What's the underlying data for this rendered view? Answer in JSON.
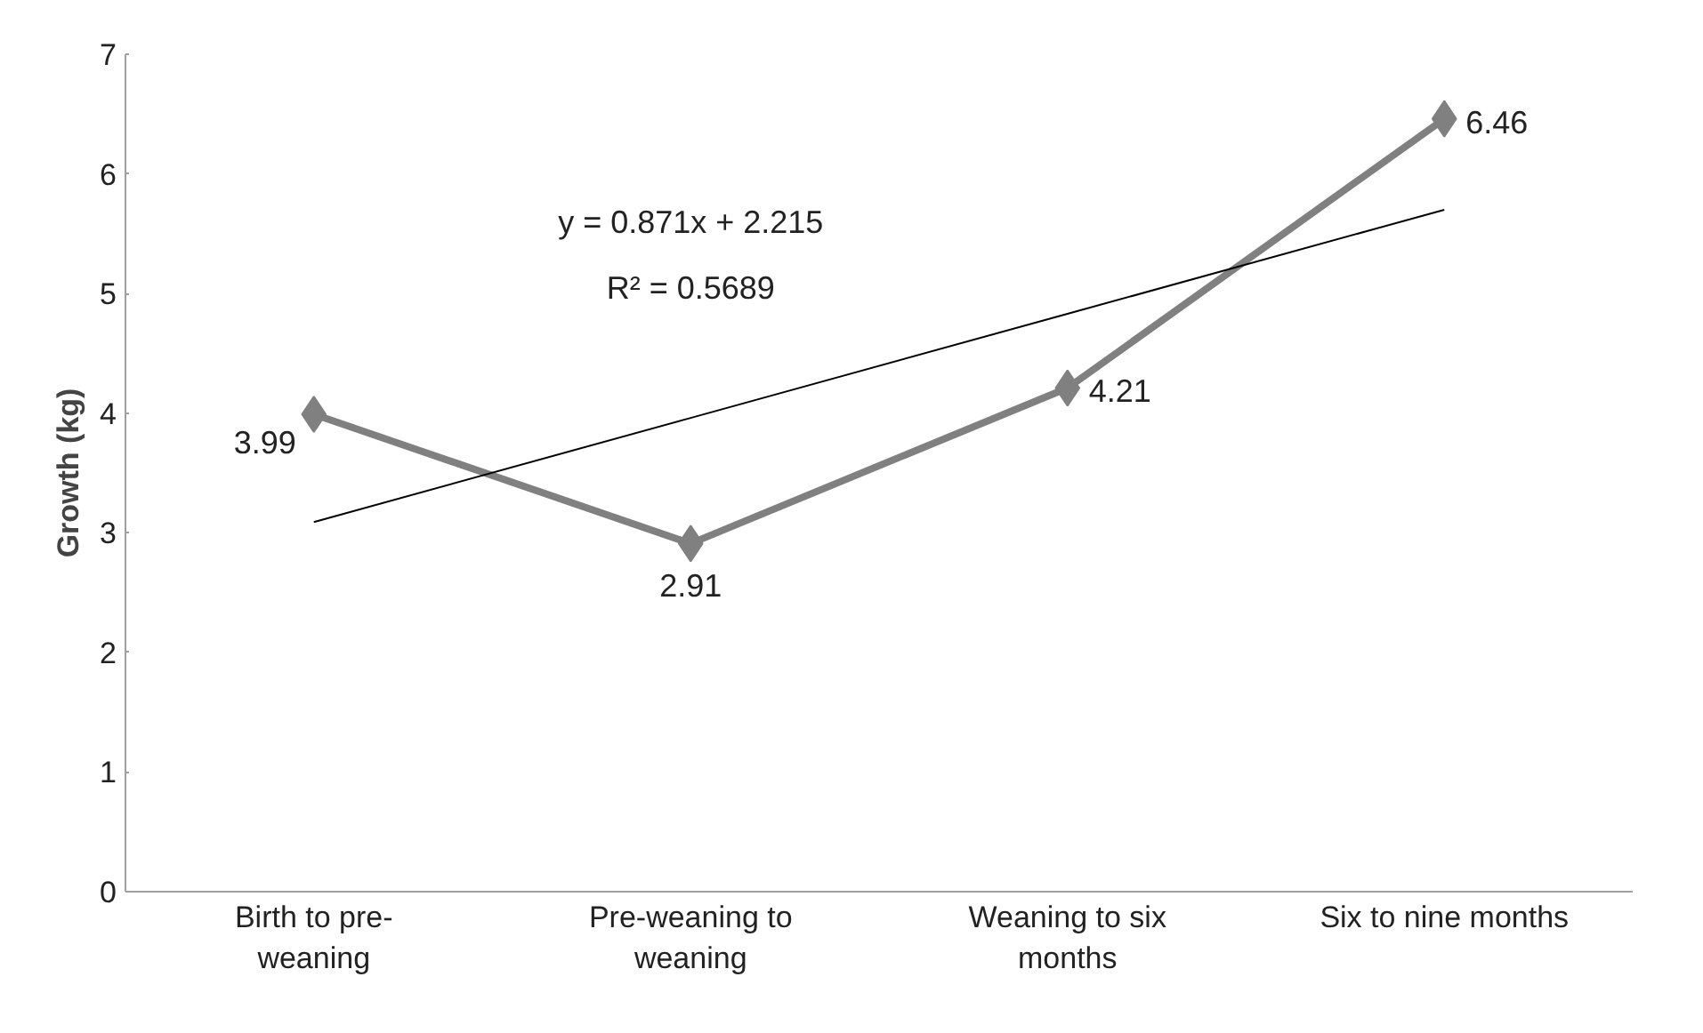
{
  "chart_data": {
    "type": "line",
    "ylabel": "Growth (kg)",
    "categories": [
      "Birth to pre-weaning",
      "Pre-weaning to weaning",
      "Weaning to six months",
      "Six to nine months"
    ],
    "series": [
      {
        "color": "#808080",
        "values": [
          3.99,
          2.91,
          4.21,
          6.46
        ],
        "marker": "diamond",
        "data_labels": true
      },
      {
        "color": "#000000",
        "values": [
          3.09,
          3.96,
          4.83,
          5.7
        ],
        "marker": "none"
      }
    ],
    "ylim": [
      0,
      7
    ],
    "yticks": [
      0,
      1,
      2,
      3,
      4,
      5,
      6,
      7
    ],
    "grid": false,
    "annotations": [
      "y = 0.871x + 2.215",
      "R² = 0.5689"
    ]
  }
}
